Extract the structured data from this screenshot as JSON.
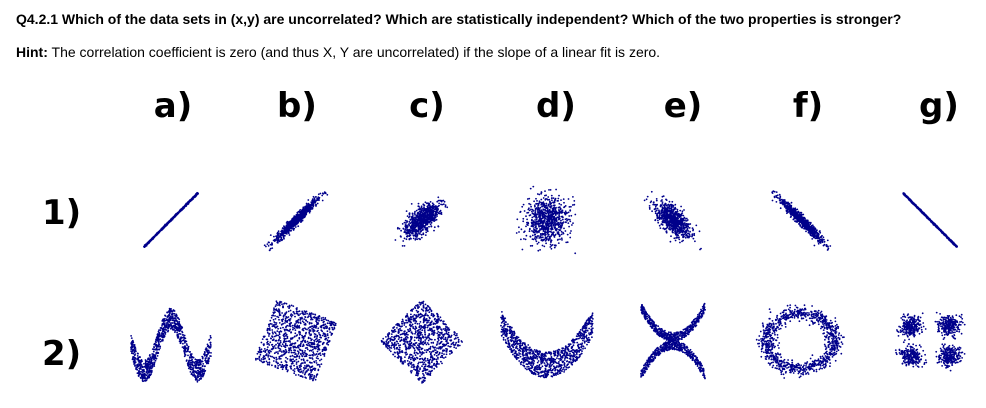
{
  "question": "Q4.2.1 Which of the data sets in (x,y) are uncorrelated? Which are statistically independent? Which of the two properties is stronger?",
  "hint": {
    "label": "Hint:",
    "text": "The correlation coefficient is zero (and thus X, Y are uncorrelated) if the slope of a linear fit is zero."
  },
  "columns": [
    "a)",
    "b)",
    "c)",
    "d)",
    "e)",
    "f)",
    "g)"
  ],
  "rows": [
    "1)",
    "2)"
  ],
  "point_color": "#00008b",
  "row1_correlations": [
    1.0,
    0.8,
    0.4,
    0.0,
    -0.4,
    -0.8,
    -1.0
  ],
  "row2_shapes": [
    "w-wave",
    "rotated-square",
    "diamond",
    "parabola",
    "x-cross",
    "ring",
    "four-clusters"
  ]
}
